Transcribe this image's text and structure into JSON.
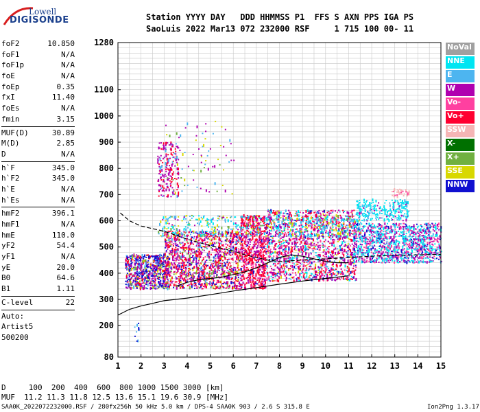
{
  "logo": {
    "line1": "Lowell",
    "line2": "DIGISONDE"
  },
  "header": {
    "line1": "Station YYYY DAY   DDD HHMMSS P1  FFS S AXN PPS IGA PS",
    "line2": "SaoLuis 2022 Mar13 072 232000 RSF     1 715 100 00- 11"
  },
  "params": [
    {
      "k": "foF2",
      "v": "10.850"
    },
    {
      "k": "foF1",
      "v": "N/A"
    },
    {
      "k": "foF1p",
      "v": "N/A"
    },
    {
      "k": "foE",
      "v": "N/A"
    },
    {
      "k": "foEp",
      "v": "0.35"
    },
    {
      "k": "fxI",
      "v": "11.40"
    },
    {
      "k": "foEs",
      "v": "N/A"
    },
    {
      "k": "fmin",
      "v": "3.15"
    },
    {
      "sep": true
    },
    {
      "k": "MUF(D)",
      "v": "30.89"
    },
    {
      "k": "M(D)",
      "v": "2.85"
    },
    {
      "k": "D",
      "v": "N/A"
    },
    {
      "sep": true
    },
    {
      "k": "h`F",
      "v": "345.0"
    },
    {
      "k": "h`F2",
      "v": "345.0"
    },
    {
      "k": "h`E",
      "v": "N/A"
    },
    {
      "k": "h`Es",
      "v": "N/A"
    },
    {
      "sep": true
    },
    {
      "k": "hmF2",
      "v": "396.1"
    },
    {
      "k": "hmF1",
      "v": "N/A"
    },
    {
      "k": "hmE",
      "v": "110.0"
    },
    {
      "k": "yF2",
      "v": "54.4"
    },
    {
      "k": "yF1",
      "v": "N/A"
    },
    {
      "k": "yE",
      "v": "20.0"
    },
    {
      "k": "B0",
      "v": "64.6"
    },
    {
      "k": "B1",
      "v": "1.11"
    },
    {
      "sep": true
    },
    {
      "k": "C-level",
      "v": "22"
    },
    {
      "sep": true
    },
    {
      "auto": "Auto:"
    },
    {
      "auto": "Artist5"
    },
    {
      "auto": "500200"
    }
  ],
  "legend": [
    {
      "label": "NoVal",
      "color": "#a0a0a0"
    },
    {
      "label": "NNE",
      "color": "#00e5f2"
    },
    {
      "label": "E",
      "color": "#4db5f0"
    },
    {
      "label": "W",
      "color": "#b000b0"
    },
    {
      "label": "Vo-",
      "color": "#ff40a0"
    },
    {
      "label": "Vo+",
      "color": "#ff0030"
    },
    {
      "label": "SSW",
      "color": "#f5b5b5"
    },
    {
      "label": "X-",
      "color": "#007000"
    },
    {
      "label": "X+",
      "color": "#70b040"
    },
    {
      "label": "SSE",
      "color": "#d8d800"
    },
    {
      "label": "NNW",
      "color": "#1010d0"
    }
  ],
  "footer": {
    "line1": "D     100  200  400  600  800 1000 1500 3000 [km]",
    "line2": "MUF  11.2 11.3 11.8 12.5 13.6 15.1 19.6 30.9 [MHz]",
    "line3": "SAA0K_2022072232000.RSF / 280fx256h 50 kHz 5.0 km / DPS-4 SAA0K 903 / 2.6 S 315.8 E",
    "line4": "Ion2Png 1.3.17"
  },
  "chart_data": {
    "type": "scatter",
    "xlim": [
      1,
      15
    ],
    "ylim": [
      80,
      1280
    ],
    "xticks": [
      1,
      2,
      3,
      4,
      5,
      6,
      7,
      8,
      9,
      10,
      11,
      12,
      13,
      14,
      15
    ],
    "yticks": [
      80,
      200,
      300,
      400,
      500,
      600,
      700,
      800,
      900,
      1000,
      1100,
      1280
    ],
    "grid": true,
    "legend_position": "right",
    "trace_curves": [
      {
        "name": "profile",
        "x": [
          1.0,
          1.5,
          2.0,
          2.5,
          3.0,
          4.0,
          5.0,
          6.0,
          7.0,
          8.0,
          9.0,
          10.0,
          11.0
        ],
        "y": [
          240,
          262,
          275,
          285,
          295,
          305,
          318,
          332,
          345,
          358,
          370,
          380,
          390
        ]
      },
      {
        "name": "virtual-height-trace",
        "x": [
          1.1,
          1.5,
          2.0,
          2.5,
          3.0,
          3.5,
          4.0,
          5.0,
          6.0,
          6.5,
          7.0,
          7.5,
          8.0,
          9.0,
          10.0,
          11.0,
          12.0,
          13.0,
          14.0,
          15.0
        ],
        "y": [
          630,
          600,
          580,
          570,
          560,
          545,
          530,
          505,
          485,
          470,
          460,
          450,
          445,
          450,
          455,
          460,
          465,
          468,
          470,
          472
        ]
      },
      {
        "name": "lower-trace",
        "x": [
          3.5,
          4.0,
          4.5,
          5.0,
          5.5,
          6.0,
          6.5,
          7.0,
          7.5,
          8.0,
          8.5,
          9.0,
          9.5,
          10.0,
          10.5,
          11.0
        ],
        "y": [
          350,
          365,
          375,
          380,
          385,
          395,
          405,
          420,
          440,
          460,
          470,
          465,
          455,
          445,
          440,
          440
        ]
      }
    ],
    "clusters": [
      {
        "x": [
          1.3,
          3.2
        ],
        "y": [
          340,
          470
        ],
        "n": 700,
        "w": [
          [
            "NNW",
            5
          ],
          [
            "W",
            3
          ],
          [
            "Vo+",
            2
          ],
          [
            "E",
            1
          ],
          [
            "SSE",
            1
          ],
          [
            "X+",
            1
          ]
        ]
      },
      {
        "x": [
          3.0,
          6.3
        ],
        "y": [
          340,
          560
        ],
        "n": 1300,
        "w": [
          [
            "Vo+",
            5
          ],
          [
            "W",
            4
          ],
          [
            "NNW",
            2
          ],
          [
            "Vo-",
            1
          ],
          [
            "SSE",
            1
          ],
          [
            "X+",
            1
          ],
          [
            "E",
            1
          ]
        ]
      },
      {
        "x": [
          6.3,
          7.4
        ],
        "y": [
          340,
          620
        ],
        "n": 700,
        "w": [
          [
            "Vo+",
            7
          ],
          [
            "W",
            3
          ],
          [
            "Vo-",
            2
          ],
          [
            "NNW",
            1
          ]
        ]
      },
      {
        "x": [
          7.4,
          11.3
        ],
        "y": [
          370,
          640
        ],
        "n": 1500,
        "w": [
          [
            "W",
            5
          ],
          [
            "Vo+",
            3
          ],
          [
            "Vo-",
            2
          ],
          [
            "NNE",
            2
          ],
          [
            "E",
            1
          ],
          [
            "NNW",
            1
          ],
          [
            "SSE",
            1
          ]
        ]
      },
      {
        "x": [
          11.2,
          15.0
        ],
        "y": [
          440,
          590
        ],
        "n": 1100,
        "w": [
          [
            "W",
            3
          ],
          [
            "NNE",
            4
          ],
          [
            "Vo-",
            2
          ],
          [
            "E",
            1
          ],
          [
            "NNW",
            1
          ]
        ]
      },
      {
        "x": [
          11.3,
          13.6
        ],
        "y": [
          600,
          680
        ],
        "n": 260,
        "w": [
          [
            "NNE",
            5
          ],
          [
            "E",
            2
          ],
          [
            "W",
            1
          ]
        ]
      },
      {
        "x": [
          2.7,
          3.6
        ],
        "y": [
          690,
          900
        ],
        "n": 200,
        "w": [
          [
            "W",
            4
          ],
          [
            "Vo+",
            3
          ],
          [
            "E",
            1
          ]
        ]
      },
      {
        "x": [
          2.7,
          11.5
        ],
        "y": [
          540,
          620
        ],
        "n": 500,
        "w": [
          [
            "NNE",
            3
          ],
          [
            "E",
            3
          ],
          [
            "SSE",
            2
          ],
          [
            "X+",
            1
          ],
          [
            "W",
            1
          ]
        ]
      },
      {
        "x": [
          3.0,
          6.0
        ],
        "y": [
          700,
          980
        ],
        "n": 80,
        "w": [
          [
            "W",
            3
          ],
          [
            "SSE",
            2
          ],
          [
            "E",
            2
          ],
          [
            "X+",
            1
          ]
        ]
      },
      {
        "x": [
          12.8,
          13.6
        ],
        "y": [
          690,
          720
        ],
        "n": 40,
        "w": [
          [
            "SSW",
            4
          ],
          [
            "Vo-",
            1
          ]
        ]
      },
      {
        "x": [
          1.7,
          1.9
        ],
        "y": [
          140,
          220
        ],
        "n": 10,
        "w": [
          [
            "NNW",
            2
          ],
          [
            "E",
            1
          ]
        ]
      }
    ]
  }
}
